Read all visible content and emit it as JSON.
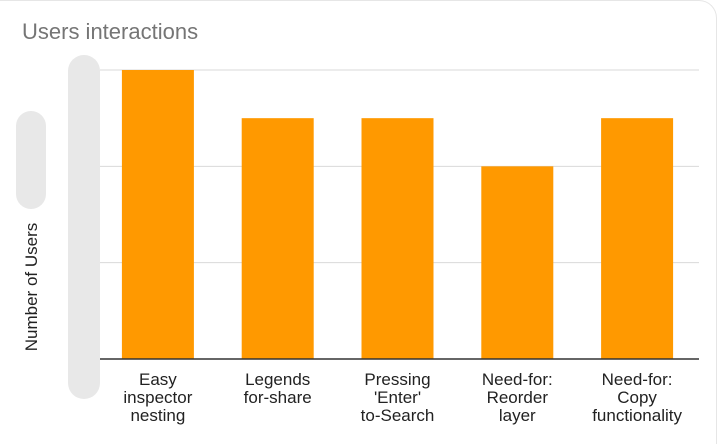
{
  "chart_data": {
    "type": "bar",
    "title": "Users interactions",
    "xlabel": "",
    "ylabel": "Number of Users",
    "categories": [
      "Easy\ninspector\nnesting",
      "Legends\nfor-share",
      "Pressing\n'Enter'\nto-Search",
      "Need-for:\nReorder\nlayer",
      "Need-for:\nCopy\nfunctionality"
    ],
    "values": [
      6,
      5,
      5,
      4,
      5
    ],
    "ylim": [
      0,
      6
    ],
    "y_gridlines": [
      2,
      4,
      6
    ],
    "tick_labels_y_visible": false,
    "grid": true,
    "bar_color": "#ff9900",
    "grid_color": "#d9d9d9",
    "axis_color": "#333333"
  }
}
